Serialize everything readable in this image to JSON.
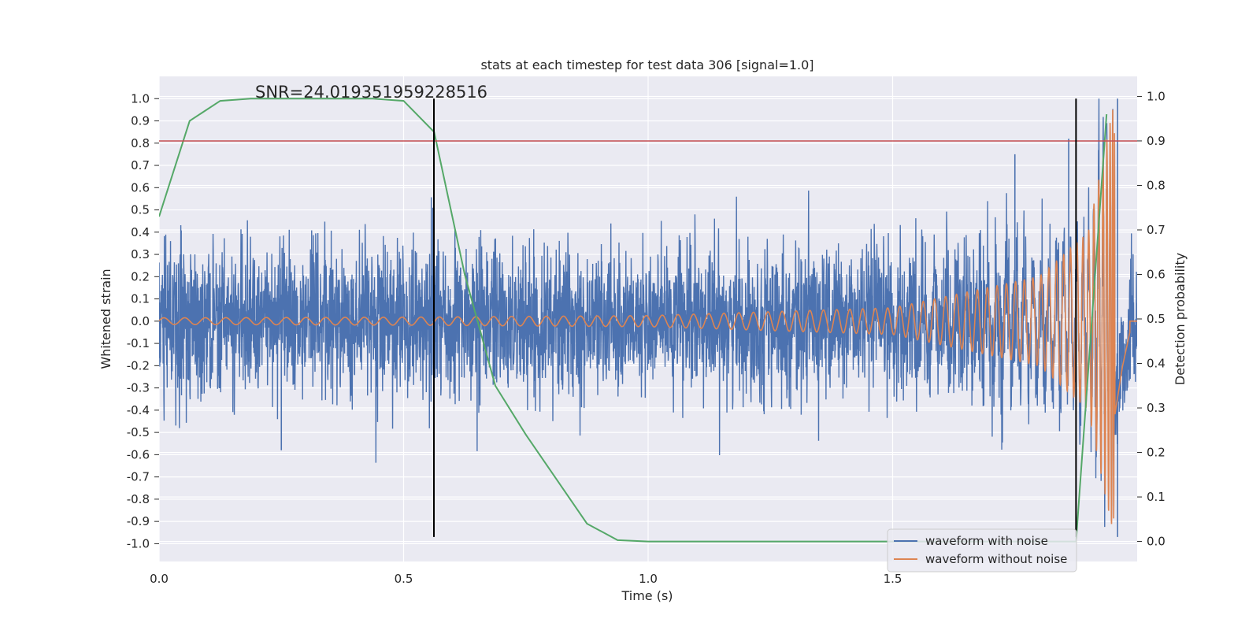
{
  "chart_data": {
    "type": "line",
    "title": "stats at each timestep for test data 306 [signal=1.0]",
    "xlabel": "Time (s)",
    "ylabel": "Whitened strain",
    "ylabel_right": "Detection probability",
    "xlim": [
      0.0,
      2.0
    ],
    "ylim": [
      -1.08,
      1.1
    ],
    "ylim_right": [
      -0.045,
      1.045
    ],
    "x_ticks": [
      "0.0",
      "0.5",
      "1.0",
      "1.5"
    ],
    "x_tick_values": [
      0.0,
      0.5,
      1.0,
      1.5
    ],
    "y_ticks": [
      "1.0",
      "0.9",
      "0.8",
      "0.7",
      "0.6",
      "0.5",
      "0.4",
      "0.3",
      "0.2",
      "0.1",
      "0.0",
      "-0.1",
      "-0.2",
      "-0.3",
      "-0.4",
      "-0.5",
      "-0.6",
      "-0.7",
      "-0.8",
      "-0.9",
      "-1.0"
    ],
    "y_tick_values": [
      1.0,
      0.9,
      0.8,
      0.7,
      0.6,
      0.5,
      0.4,
      0.3,
      0.2,
      0.1,
      0.0,
      -0.1,
      -0.2,
      -0.3,
      -0.4,
      -0.5,
      -0.6,
      -0.7,
      -0.8,
      -0.9,
      -1.0
    ],
    "y_right_ticks": [
      "1.0",
      "0.9",
      "0.8",
      "0.7",
      "0.6",
      "0.5",
      "0.4",
      "0.3",
      "0.2",
      "0.1",
      "0.0"
    ],
    "y_right_tick_values": [
      1.0,
      0.9,
      0.8,
      0.7,
      0.6,
      0.5,
      0.4,
      0.3,
      0.2,
      0.1,
      0.0
    ],
    "grid": true,
    "legend_position": "lower-right",
    "annotation": "SNR=24.019351959228516",
    "threshold": {
      "axis": "right",
      "value": 0.9,
      "color": "#c44e52"
    },
    "vertical_markers": [
      {
        "x": 0.562,
        "y_from": -0.97,
        "y_to": 1.0
      },
      {
        "x": 1.875,
        "y_from": -0.97,
        "y_to": 1.0
      }
    ],
    "series": [
      {
        "name": "waveform with noise",
        "color": "#4c72b0",
        "kind": "noise",
        "x_range": [
          0.0,
          2.0
        ],
        "approx_amplitude": 0.45,
        "extremes": [
          {
            "x": 0.25,
            "y": -0.58
          },
          {
            "x": 0.56,
            "y": 0.51
          },
          {
            "x": 1.75,
            "y": 0.75
          },
          {
            "x": 1.86,
            "y": 0.82
          },
          {
            "x": 1.96,
            "y": 1.0
          },
          {
            "x": 1.96,
            "y": -0.97
          }
        ]
      },
      {
        "name": "waveform without noise",
        "color": "#dd8452",
        "kind": "chirp",
        "x_range": [
          0.0,
          2.0
        ],
        "amplitude_envelope": [
          {
            "x": 0.0,
            "y": 0.015
          },
          {
            "x": 0.5,
            "y": 0.018
          },
          {
            "x": 1.0,
            "y": 0.025
          },
          {
            "x": 1.5,
            "y": 0.06
          },
          {
            "x": 1.8,
            "y": 0.2
          },
          {
            "x": 1.9,
            "y": 0.4
          },
          {
            "x": 1.95,
            "y": 0.95
          },
          {
            "x": 1.97,
            "y": 0.4
          },
          {
            "x": 1.99,
            "y": 0.0
          }
        ]
      },
      {
        "name": "detection probability",
        "color": "#55a868",
        "axis": "right",
        "x": [
          0.0,
          0.0625,
          0.125,
          0.1875,
          0.25,
          0.3125,
          0.375,
          0.4375,
          0.5,
          0.5625,
          0.625,
          0.6875,
          0.75,
          0.8125,
          0.875,
          0.9375,
          1.0,
          1.0625,
          1.875,
          1.9375
        ],
        "values": [
          0.73,
          0.945,
          0.99,
          0.995,
          0.995,
          0.995,
          0.995,
          0.995,
          0.99,
          0.92,
          0.6,
          0.35,
          0.24,
          0.14,
          0.04,
          0.003,
          0.0,
          0.0,
          0.0,
          0.96
        ]
      }
    ]
  }
}
